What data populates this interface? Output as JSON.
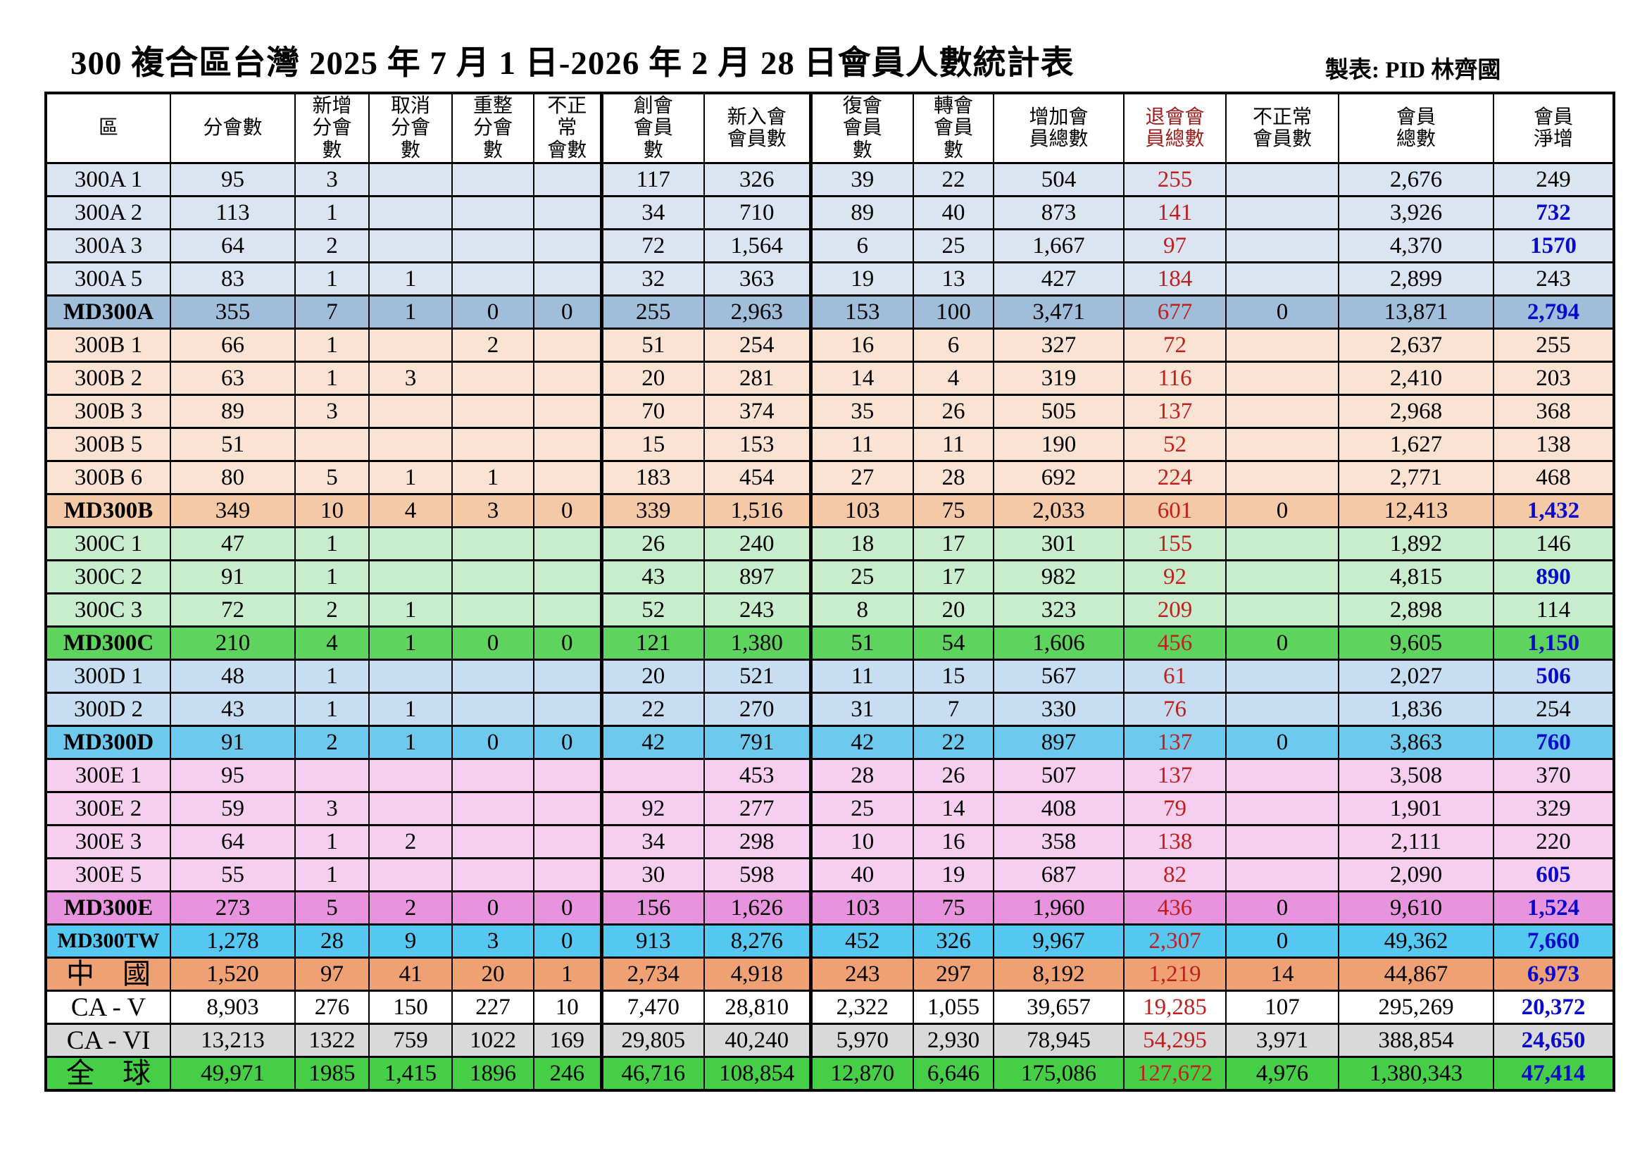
{
  "page": {
    "title": "300 複合區台灣 2025 年 7 月 1 日-2026 年 2 月 28 日會員人數統計表",
    "maker_note": "製表: PID 林齊國"
  },
  "colors": {
    "text_black": "#000000",
    "value_red": "#bf1f1f",
    "header_red": "#9e1b1b",
    "net_blue": "#0a0acc",
    "a_light": "#dbe5f1",
    "a_total": "#a0bdda",
    "b_light": "#fbe3d4",
    "b_total": "#f6c9a6",
    "c_light": "#c8edcc",
    "c_total": "#5ed35e",
    "d_light": "#c6ddf2",
    "d_total": "#6ec9ee",
    "e_light": "#f5cef0",
    "e_total": "#e793dd",
    "tw_total": "#55c8f2",
    "china": "#efa173",
    "ca5": "#ffffff",
    "ca6": "#d9d9d9",
    "global": "#46cf46"
  },
  "table": {
    "headers": [
      {
        "text": "區"
      },
      {
        "text": "分會數"
      },
      {
        "text": "新增\n分會\n數"
      },
      {
        "text": "取消\n分會\n數"
      },
      {
        "text": "重整\n分會\n數"
      },
      {
        "text": "不正\n常\n會數"
      },
      {
        "text": "創會\n會員\n數"
      },
      {
        "text": "新入會\n會員數"
      },
      {
        "text": "復會\n會員\n數"
      },
      {
        "text": "轉會\n會員\n數"
      },
      {
        "text": "增加會\n員總數"
      },
      {
        "text": "退會會\n員總數",
        "color": "header_red"
      },
      {
        "text": "不正常\n會員數"
      },
      {
        "text": "會員\n總數"
      },
      {
        "text": "會員\n淨增"
      }
    ],
    "rows": [
      {
        "label": "300A 1",
        "kind": "district",
        "bg": "a_light",
        "values": [
          "95",
          "3",
          "",
          "",
          "",
          "117",
          "326",
          "39",
          "22",
          "504",
          "255",
          "",
          "2,676",
          "249"
        ],
        "net_highlight": false
      },
      {
        "label": "300A 2",
        "kind": "district",
        "bg": "a_light",
        "values": [
          "113",
          "1",
          "",
          "",
          "",
          "34",
          "710",
          "89",
          "40",
          "873",
          "141",
          "",
          "3,926",
          "732"
        ],
        "net_highlight": true
      },
      {
        "label": "300A 3",
        "kind": "district",
        "bg": "a_light",
        "values": [
          "64",
          "2",
          "",
          "",
          "",
          "72",
          "1,564",
          "6",
          "25",
          "1,667",
          "97",
          "",
          "4,370",
          "1570"
        ],
        "net_highlight": true
      },
      {
        "label": "300A 5",
        "kind": "district",
        "bg": "a_light",
        "values": [
          "83",
          "1",
          "1",
          "",
          "",
          "32",
          "363",
          "19",
          "13",
          "427",
          "184",
          "",
          "2,899",
          "243"
        ],
        "net_highlight": false
      },
      {
        "label": "MD300A",
        "kind": "md",
        "bg": "a_total",
        "values": [
          "355",
          "7",
          "1",
          "0",
          "0",
          "255",
          "2,963",
          "153",
          "100",
          "3,471",
          "677",
          "0",
          "13,871",
          "2,794"
        ],
        "net_highlight": true
      },
      {
        "label": "300B 1",
        "kind": "district",
        "bg": "b_light",
        "values": [
          "66",
          "1",
          "",
          "2",
          "",
          "51",
          "254",
          "16",
          "6",
          "327",
          "72",
          "",
          "2,637",
          "255"
        ],
        "net_highlight": false
      },
      {
        "label": "300B 2",
        "kind": "district",
        "bg": "b_light",
        "values": [
          "63",
          "1",
          "3",
          "",
          "",
          "20",
          "281",
          "14",
          "4",
          "319",
          "116",
          "",
          "2,410",
          "203"
        ],
        "net_highlight": false
      },
      {
        "label": "300B 3",
        "kind": "district",
        "bg": "b_light",
        "values": [
          "89",
          "3",
          "",
          "",
          "",
          "70",
          "374",
          "35",
          "26",
          "505",
          "137",
          "",
          "2,968",
          "368"
        ],
        "net_highlight": false
      },
      {
        "label": "300B 5",
        "kind": "district",
        "bg": "b_light",
        "values": [
          "51",
          "",
          "",
          "",
          "",
          "15",
          "153",
          "11",
          "11",
          "190",
          "52",
          "",
          "1,627",
          "138"
        ],
        "net_highlight": false
      },
      {
        "label": "300B 6",
        "kind": "district",
        "bg": "b_light",
        "values": [
          "80",
          "5",
          "1",
          "1",
          "",
          "183",
          "454",
          "27",
          "28",
          "692",
          "224",
          "",
          "2,771",
          "468"
        ],
        "net_highlight": false
      },
      {
        "label": "MD300B",
        "kind": "md",
        "bg": "b_total",
        "values": [
          "349",
          "10",
          "4",
          "3",
          "0",
          "339",
          "1,516",
          "103",
          "75",
          "2,033",
          "601",
          "0",
          "12,413",
          "1,432"
        ],
        "net_highlight": true
      },
      {
        "label": "300C 1",
        "kind": "district",
        "bg": "c_light",
        "values": [
          "47",
          "1",
          "",
          "",
          "",
          "26",
          "240",
          "18",
          "17",
          "301",
          "155",
          "",
          "1,892",
          "146"
        ],
        "net_highlight": false
      },
      {
        "label": "300C 2",
        "kind": "district",
        "bg": "c_light",
        "values": [
          "91",
          "1",
          "",
          "",
          "",
          "43",
          "897",
          "25",
          "17",
          "982",
          "92",
          "",
          "4,815",
          "890"
        ],
        "net_highlight": true
      },
      {
        "label": "300C 3",
        "kind": "district",
        "bg": "c_light",
        "values": [
          "72",
          "2",
          "1",
          "",
          "",
          "52",
          "243",
          "8",
          "20",
          "323",
          "209",
          "",
          "2,898",
          "114"
        ],
        "net_highlight": false
      },
      {
        "label": "MD300C",
        "kind": "md",
        "bg": "c_total",
        "values": [
          "210",
          "4",
          "1",
          "0",
          "0",
          "121",
          "1,380",
          "51",
          "54",
          "1,606",
          "456",
          "0",
          "9,605",
          "1,150"
        ],
        "net_highlight": true
      },
      {
        "label": "300D 1",
        "kind": "district",
        "bg": "d_light",
        "values": [
          "48",
          "1",
          "",
          "",
          "",
          "20",
          "521",
          "11",
          "15",
          "567",
          "61",
          "",
          "2,027",
          "506"
        ],
        "net_highlight": true
      },
      {
        "label": "300D 2",
        "kind": "district",
        "bg": "d_light",
        "values": [
          "43",
          "1",
          "1",
          "",
          "",
          "22",
          "270",
          "31",
          "7",
          "330",
          "76",
          "",
          "1,836",
          "254"
        ],
        "net_highlight": false
      },
      {
        "label": "MD300D",
        "kind": "md",
        "bg": "d_total",
        "values": [
          "91",
          "2",
          "1",
          "0",
          "0",
          "42",
          "791",
          "42",
          "22",
          "897",
          "137",
          "0",
          "3,863",
          "760"
        ],
        "net_highlight": true
      },
      {
        "label": "300E 1",
        "kind": "district",
        "bg": "e_light",
        "values": [
          "95",
          "",
          "",
          "",
          "",
          "",
          "453",
          "28",
          "26",
          "507",
          "137",
          "",
          "3,508",
          "370"
        ],
        "net_highlight": false
      },
      {
        "label": "300E 2",
        "kind": "district",
        "bg": "e_light",
        "values": [
          "59",
          "3",
          "",
          "",
          "",
          "92",
          "277",
          "25",
          "14",
          "408",
          "79",
          "",
          "1,901",
          "329"
        ],
        "net_highlight": false
      },
      {
        "label": "300E 3",
        "kind": "district",
        "bg": "e_light",
        "values": [
          "64",
          "1",
          "2",
          "",
          "",
          "34",
          "298",
          "10",
          "16",
          "358",
          "138",
          "",
          "2,111",
          "220"
        ],
        "net_highlight": false
      },
      {
        "label": "300E 5",
        "kind": "district",
        "bg": "e_light",
        "values": [
          "55",
          "1",
          "",
          "",
          "",
          "30",
          "598",
          "40",
          "19",
          "687",
          "82",
          "",
          "2,090",
          "605"
        ],
        "net_highlight": true
      },
      {
        "label": "MD300E",
        "kind": "md",
        "bg": "e_total",
        "values": [
          "273",
          "5",
          "2",
          "0",
          "0",
          "156",
          "1,626",
          "103",
          "75",
          "1,960",
          "436",
          "0",
          "9,610",
          "1,524"
        ],
        "net_highlight": true
      },
      {
        "label": "MD300TW",
        "kind": "tw",
        "bg": "tw_total",
        "values": [
          "1,278",
          "28",
          "9",
          "3",
          "0",
          "913",
          "8,276",
          "452",
          "326",
          "9,967",
          "2,307",
          "0",
          "49,362",
          "7,660"
        ],
        "net_highlight": true
      },
      {
        "label": "中　國",
        "kind": "big",
        "bg": "china",
        "values": [
          "1,520",
          "97",
          "41",
          "20",
          "1",
          "2,734",
          "4,918",
          "243",
          "297",
          "8,192",
          "1,219",
          "14",
          "44,867",
          "6,973"
        ],
        "net_highlight": true
      },
      {
        "label": "CA - V",
        "kind": "ca",
        "bg": "ca5",
        "values": [
          "8,903",
          "276",
          "150",
          "227",
          "10",
          "7,470",
          "28,810",
          "2,322",
          "1,055",
          "39,657",
          "19,285",
          "107",
          "295,269",
          "20,372"
        ],
        "net_highlight": true
      },
      {
        "label": "CA - VI",
        "kind": "ca",
        "bg": "ca6",
        "values": [
          "13,213",
          "1322",
          "759",
          "1022",
          "169",
          "29,805",
          "40,240",
          "5,970",
          "2,930",
          "78,945",
          "54,295",
          "3,971",
          "388,854",
          "24,650"
        ],
        "net_highlight": true
      },
      {
        "label": "全　球",
        "kind": "big",
        "bg": "global",
        "values": [
          "49,971",
          "1985",
          "1,415",
          "1896",
          "246",
          "46,716",
          "108,854",
          "12,870",
          "6,646",
          "175,086",
          "127,672",
          "4,976",
          "1,380,343",
          "47,414"
        ],
        "net_highlight": true
      }
    ]
  }
}
